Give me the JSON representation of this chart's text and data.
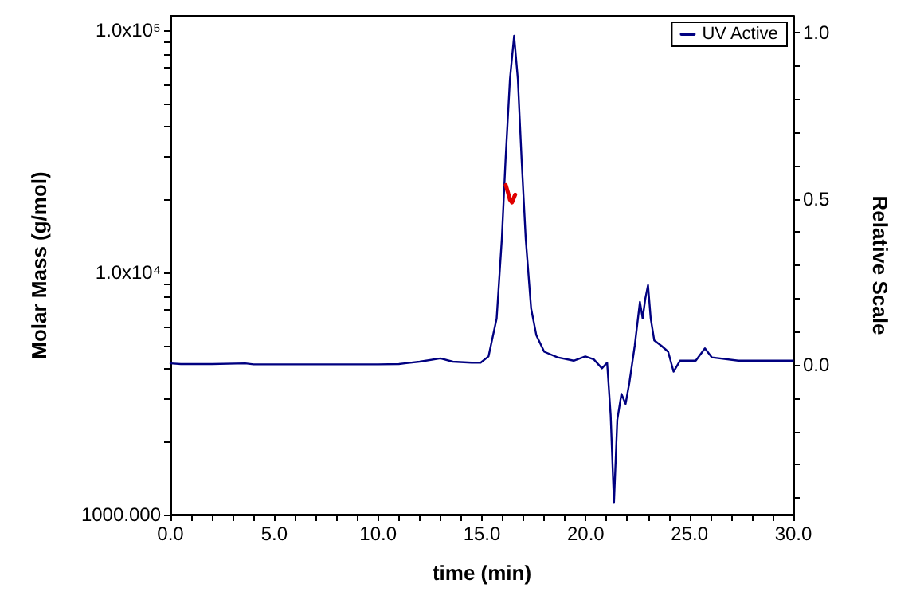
{
  "chart_data": {
    "type": "line",
    "xlabel": "time (min)",
    "ylabel": "Molar Mass (g/mol)",
    "y2label": "Relative Scale",
    "log": "y",
    "legend": "top right",
    "marker": "none",
    "line_style": "solid",
    "xlim": [
      0,
      30
    ],
    "xticks": [
      {
        "value": 0,
        "label": "0.0"
      },
      {
        "value": 1,
        "label": null
      },
      {
        "value": 2,
        "label": null
      },
      {
        "value": 3,
        "label": null
      },
      {
        "value": 4,
        "label": null
      },
      {
        "value": 5,
        "label": "5.0"
      },
      {
        "value": 6,
        "label": null
      },
      {
        "value": 7,
        "label": null
      },
      {
        "value": 8,
        "label": null
      },
      {
        "value": 9,
        "label": null
      },
      {
        "value": 10,
        "label": "10.0"
      },
      {
        "value": 11,
        "label": null
      },
      {
        "value": 12,
        "label": null
      },
      {
        "value": 13,
        "label": null
      },
      {
        "value": 14,
        "label": null
      },
      {
        "value": 15,
        "label": "15.0"
      },
      {
        "value": 16,
        "label": null
      },
      {
        "value": 17,
        "label": null
      },
      {
        "value": 18,
        "label": null
      },
      {
        "value": 19,
        "label": null
      },
      {
        "value": 20,
        "label": "20.0"
      },
      {
        "value": 21,
        "label": null
      },
      {
        "value": 22,
        "label": null
      },
      {
        "value": 23,
        "label": null
      },
      {
        "value": 24,
        "label": null
      },
      {
        "value": 25,
        "label": "25.0"
      },
      {
        "value": 26,
        "label": null
      },
      {
        "value": 27,
        "label": null
      },
      {
        "value": 28,
        "label": null
      },
      {
        "value": 29,
        "label": null
      },
      {
        "value": 30,
        "label": "30.0"
      }
    ],
    "ylim": [
      1000,
      115000
    ],
    "yticks": [
      {
        "value": 1000,
        "label": "1000.000"
      },
      {
        "value": 2000,
        "label": null
      },
      {
        "value": 3000,
        "label": null
      },
      {
        "value": 4000,
        "label": null
      },
      {
        "value": 5000,
        "label": null
      },
      {
        "value": 6000,
        "label": null
      },
      {
        "value": 7000,
        "label": null
      },
      {
        "value": 8000,
        "label": null
      },
      {
        "value": 9000,
        "label": null
      },
      {
        "value": 10000,
        "label": "1.0x10⁴"
      },
      {
        "value": 20000,
        "label": null
      },
      {
        "value": 30000,
        "label": null
      },
      {
        "value": 40000,
        "label": null
      },
      {
        "value": 50000,
        "label": null
      },
      {
        "value": 60000,
        "label": null
      },
      {
        "value": 70000,
        "label": null
      },
      {
        "value": 80000,
        "label": null
      },
      {
        "value": 90000,
        "label": null
      },
      {
        "value": 100000,
        "label": "1.0x10⁵"
      }
    ],
    "y2lim": [
      -0.45,
      1.05
    ],
    "y2ticks": [
      {
        "value": -0.4,
        "label": null
      },
      {
        "value": -0.3,
        "label": null
      },
      {
        "value": -0.2,
        "label": null
      },
      {
        "value": -0.1,
        "label": null
      },
      {
        "value": 0,
        "label": "0.0"
      },
      {
        "value": 0.1,
        "label": null
      },
      {
        "value": 0.2,
        "label": null
      },
      {
        "value": 0.3,
        "label": null
      },
      {
        "value": 0.4,
        "label": null
      },
      {
        "value": 0.5,
        "label": "0.5"
      },
      {
        "value": 0.6,
        "label": null
      },
      {
        "value": 0.7,
        "label": null
      },
      {
        "value": 0.8,
        "label": null
      },
      {
        "value": 0.9,
        "label": null
      },
      {
        "value": 1,
        "label": "1.0"
      }
    ],
    "series": [
      {
        "name": "UV Active",
        "color": "#000080",
        "axis": "y2",
        "x": [
          0,
          0.5,
          2,
          3.6,
          4,
          10,
          11,
          12,
          13,
          13.6,
          14.5,
          14.94,
          15.32,
          15.71,
          15.96,
          16.14,
          16.35,
          16.55,
          16.73,
          16.91,
          17.11,
          17.37,
          17.62,
          18.0,
          18.65,
          19.42,
          19.98,
          20.39,
          20.78,
          21.03,
          21.2,
          21.36,
          21.52,
          21.72,
          21.92,
          22.1,
          22.36,
          22.61,
          22.74,
          22.87,
          23.0,
          23.13,
          23.3,
          23.64,
          23.97,
          24.23,
          24.54,
          25.3,
          25.74,
          26.07,
          27.35,
          29.98
        ],
        "values": [
          0.005,
          0.003,
          0.003,
          0.005,
          0.002,
          0.002,
          0.003,
          0.01,
          0.02,
          0.01,
          0.007,
          0.007,
          0.026,
          0.14,
          0.38,
          0.62,
          0.86,
          0.99,
          0.86,
          0.62,
          0.38,
          0.17,
          0.09,
          0.04,
          0.023,
          0.013,
          0.026,
          0.017,
          -0.01,
          0.007,
          -0.15,
          -0.415,
          -0.165,
          -0.087,
          -0.117,
          -0.054,
          0.058,
          0.19,
          0.14,
          0.2,
          0.24,
          0.14,
          0.074,
          0.058,
          0.04,
          -0.02,
          0.013,
          0.013,
          0.05,
          0.023,
          0.013,
          0.013
        ]
      },
      {
        "color": "#e00000",
        "x": [
          16.15,
          16.25,
          16.35,
          16.45,
          16.55,
          16.6
        ],
        "values": [
          23000,
          21500,
          20000,
          19500,
          20500,
          21000
        ]
      }
    ]
  }
}
